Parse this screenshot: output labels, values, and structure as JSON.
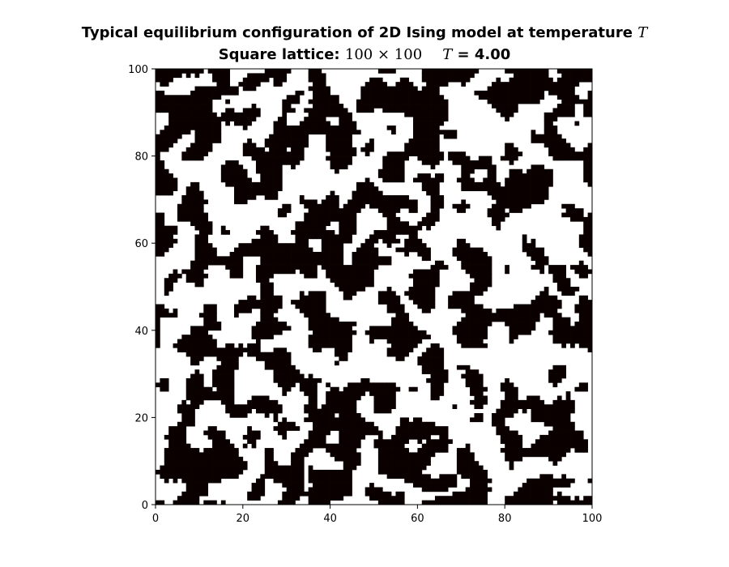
{
  "chart_data": {
    "type": "heatmap",
    "title": {
      "line1_text": "Typical equilibrium configuration of 2D Ising model at temperature",
      "line1_symbol": "T",
      "line2_prefix": "Square lattice:",
      "line2_size": "100 × 100",
      "line2_symbol": "T",
      "line2_suffix": "= 4.00"
    },
    "lattice_size": [
      100,
      100
    ],
    "temperature": 4.0,
    "xlim": [
      0,
      100
    ],
    "ylim": [
      0,
      100
    ],
    "x_ticks": [
      "0",
      "20",
      "40",
      "60",
      "80",
      "100"
    ],
    "y_ticks": [
      "0",
      "20",
      "40",
      "60",
      "80",
      "100"
    ],
    "grid": false,
    "colors": {
      "spin_down": "#0b0000",
      "spin_up": "#ffffff"
    },
    "note_spins": "Random-looking black/white domain configuration; individual spin values are not legible and are generated procedurally with a fixed seed."
  }
}
